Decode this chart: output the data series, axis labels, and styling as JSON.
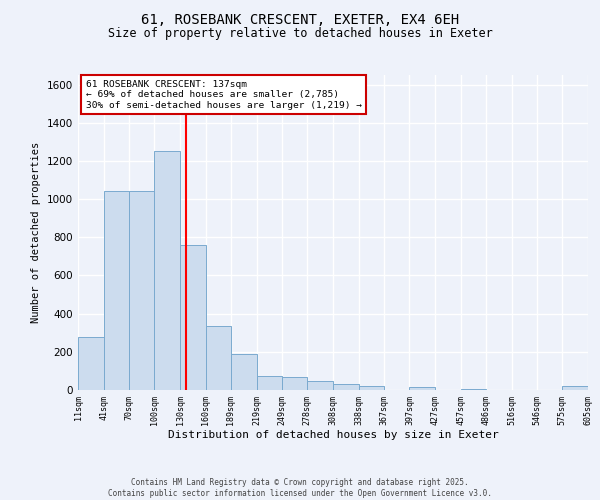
{
  "title1": "61, ROSEBANK CRESCENT, EXETER, EX4 6EH",
  "title2": "Size of property relative to detached houses in Exeter",
  "xlabel": "Distribution of detached houses by size in Exeter",
  "ylabel": "Number of detached properties",
  "bin_edges": [
    11,
    41,
    70,
    100,
    130,
    160,
    189,
    219,
    249,
    278,
    308,
    338,
    367,
    397,
    427,
    457,
    486,
    516,
    546,
    575,
    605
  ],
  "bar_heights": [
    280,
    1040,
    1040,
    1250,
    760,
    335,
    190,
    75,
    70,
    45,
    30,
    20,
    0,
    15,
    0,
    5,
    0,
    0,
    0,
    20
  ],
  "bar_color": "#ccdcee",
  "bar_edge_color": "#7aaacf",
  "red_line_x": 137,
  "annotation_title": "61 ROSEBANK CRESCENT: 137sqm",
  "annotation_line1": "← 69% of detached houses are smaller (2,785)",
  "annotation_line2": "30% of semi-detached houses are larger (1,219) →",
  "annotation_box_color": "#ffffff",
  "annotation_box_edge": "#cc0000",
  "ylim": [
    0,
    1650
  ],
  "yticks": [
    0,
    200,
    400,
    600,
    800,
    1000,
    1200,
    1400,
    1600
  ],
  "bg_color": "#eef2fa",
  "grid_color": "#ffffff",
  "footer1": "Contains HM Land Registry data © Crown copyright and database right 2025.",
  "footer2": "Contains public sector information licensed under the Open Government Licence v3.0."
}
